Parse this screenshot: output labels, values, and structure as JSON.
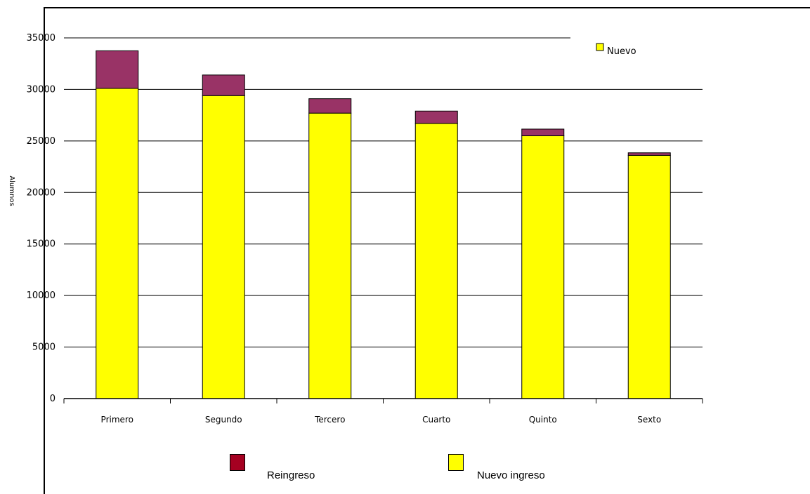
{
  "chart_data": {
    "type": "bar",
    "stacked": true,
    "categories": [
      "Primero",
      "Segundo",
      "Tercero",
      "Cuarto",
      "Quinto",
      "Sexto"
    ],
    "series": [
      {
        "name": "Nuevo ingreso",
        "color": "#ffff00",
        "values": [
          30100,
          29400,
          27700,
          26700,
          25500,
          23600
        ]
      },
      {
        "name": "Reingreso",
        "color": "#993366",
        "values": [
          3650,
          2000,
          1400,
          1200,
          650,
          250
        ]
      }
    ],
    "ylabel": "Alumnos",
    "xlabel": "",
    "ylim": [
      0,
      35000
    ],
    "yticks": [
      "0",
      "5000",
      "10000",
      "15000",
      "20000",
      "25000",
      "30000",
      "35000"
    ],
    "grid": true,
    "inner_legend": {
      "label": "Nuevo",
      "color": "#ffff00"
    },
    "legend": [
      {
        "label": "Reingreso",
        "color": "#a50021"
      },
      {
        "label": "Nuevo ingreso",
        "color": "#ffff00"
      }
    ]
  }
}
